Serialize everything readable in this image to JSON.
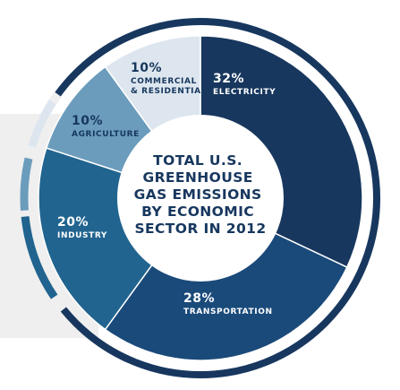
{
  "chart_data": {
    "type": "pie",
    "center_title_lines": [
      "TOTAL U.S.",
      "GREENHOUSE",
      "GAS EMISSIONS",
      "BY ECONOMIC",
      "SECTOR IN 2012"
    ],
    "slices": [
      {
        "pct_label": "32%",
        "label_lines": [
          "ELECTRICITY"
        ],
        "value": 32,
        "color": "#17375e",
        "text_color": "#ffffff"
      },
      {
        "pct_label": "28%",
        "label_lines": [
          "TRANSPORTATION"
        ],
        "value": 28,
        "color": "#1a4a7a",
        "text_color": "#ffffff"
      },
      {
        "pct_label": "20%",
        "label_lines": [
          "INDUSTRY"
        ],
        "value": 20,
        "color": "#21648f",
        "text_color": "#ffffff"
      },
      {
        "pct_label": "10%",
        "label_lines": [
          "AGRICULTURE"
        ],
        "value": 10,
        "color": "#6b9cbc",
        "text_color": "#17375e"
      },
      {
        "pct_label": "10%",
        "label_lines": [
          "COMMERCIAL",
          "& RESIDENTIAL"
        ],
        "value": 10,
        "color": "#dde6ef",
        "text_color": "#17375e"
      }
    ],
    "colors": {
      "outer_ring": "#17375e",
      "inner_circle": "#ffffff",
      "background_band": "#efefef"
    }
  }
}
